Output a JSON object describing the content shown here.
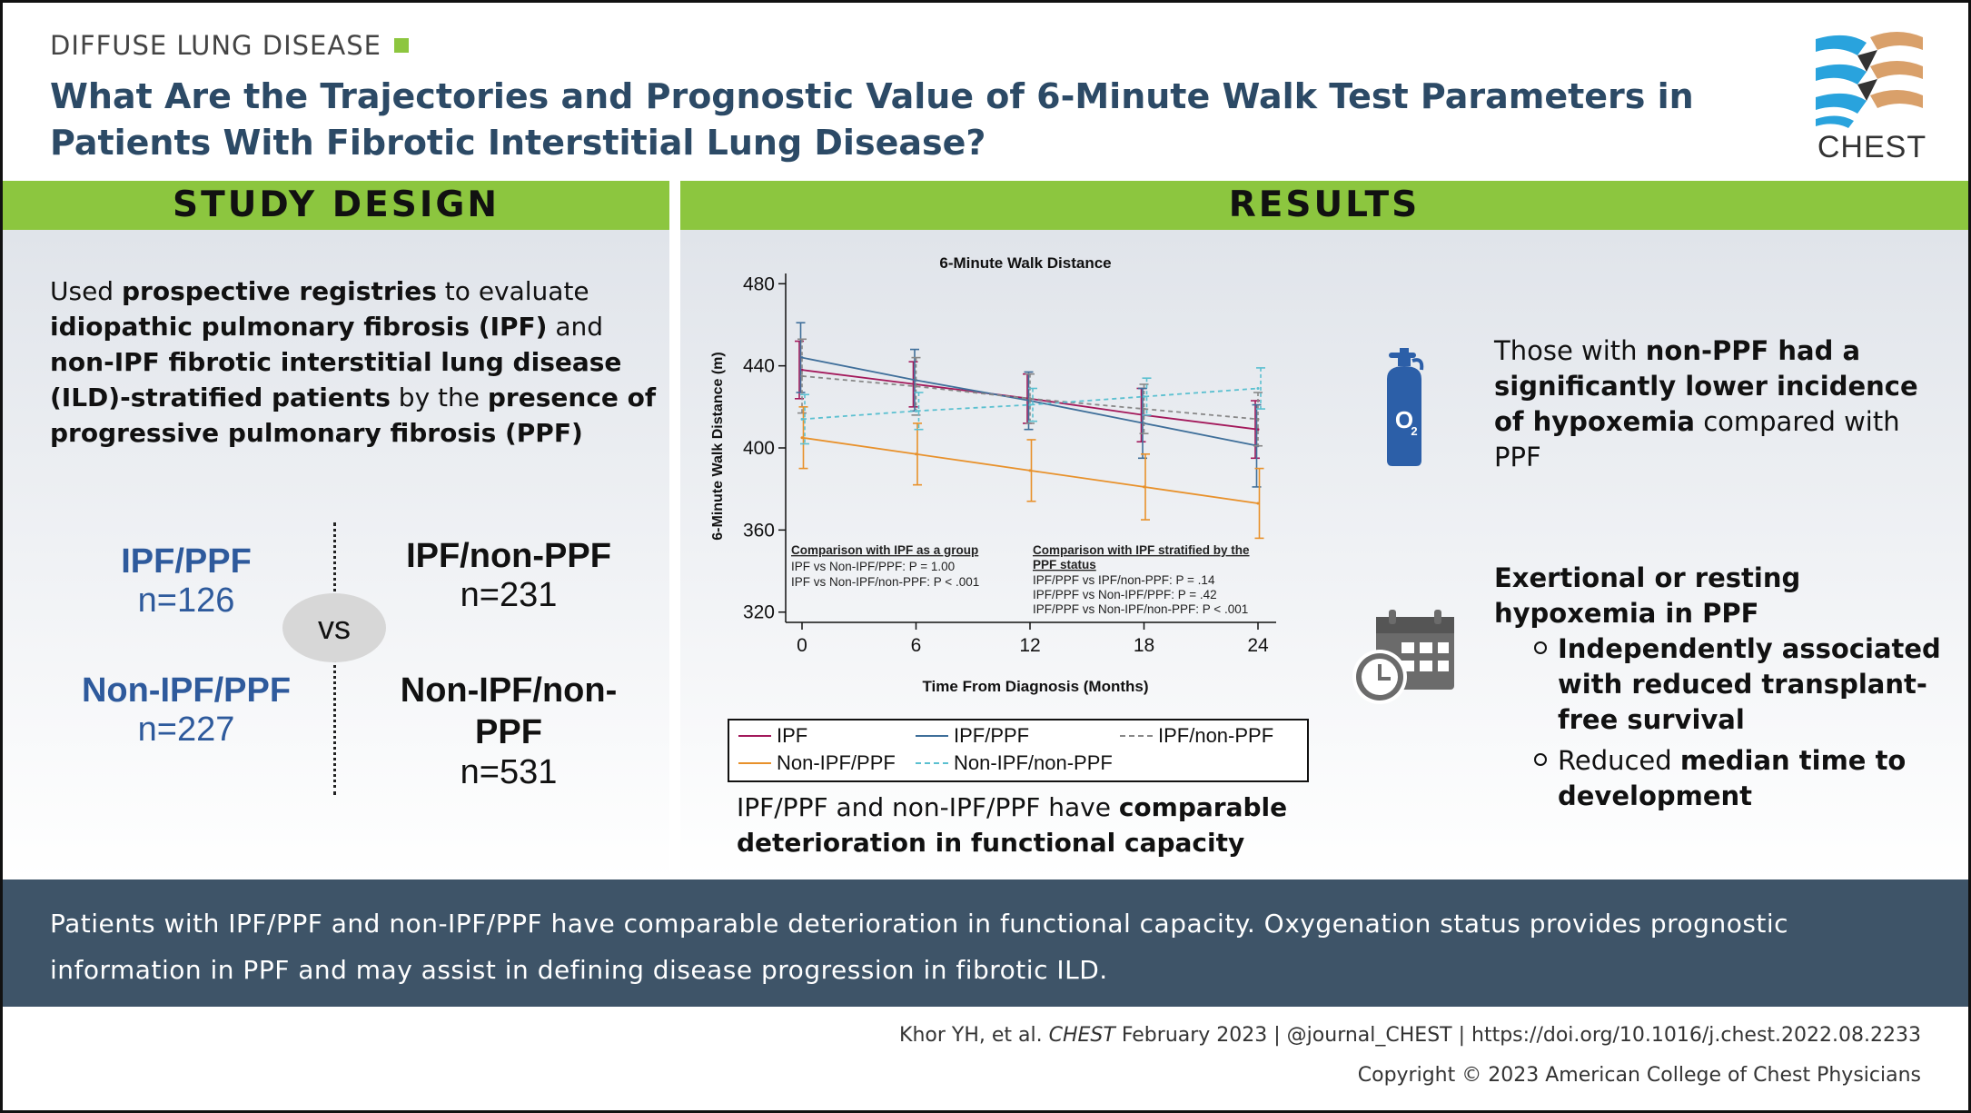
{
  "header": {
    "tag": "DIFFUSE LUNG DISEASE",
    "title_line1": "What Are the Trajectories and Prognostic Value of 6-Minute Walk Test Parameters in",
    "title_line2": "Patients With Fibrotic Interstitial Lung Disease?",
    "logo_text": "CHEST"
  },
  "study_design": {
    "heading": "STUDY DESIGN",
    "text_parts": [
      "Used ",
      "prospective registries",
      " to evaluate ",
      "idiopathic pulmonary fibrosis (IPF)",
      " and ",
      "non-IPF fibrotic interstitial lung disease (ILD)-stratified patients",
      " by the ",
      "presence of progressive pulmonary fibrosis (PPF)"
    ],
    "groups": [
      {
        "name": "IPF/PPF",
        "n": "n=126"
      },
      {
        "name": "Non-IPF/PPF",
        "n": "n=227"
      },
      {
        "name": "IPF/non-PPF",
        "n": "n=231"
      },
      {
        "name": "Non-IPF/non-PPF",
        "n": "n=531"
      }
    ],
    "vs": "vs"
  },
  "results": {
    "heading": "RESULTS",
    "chart_caption_parts": [
      "IPF/PPF and non-IPF/PPF have ",
      "comparable deterioration in functional capacity"
    ],
    "finding1_parts": [
      "Those with ",
      "non-PPF had a significantly lower incidence of hypoxemia",
      " compared with PPF"
    ],
    "finding2_heading": "Exertional or resting hypoxemia in PPF",
    "finding2_bullet1": "Independently associated with reduced transplant-free survival",
    "finding2_bullet2_parts": [
      "Reduced ",
      "median time to development"
    ],
    "icons": [
      "oxygen-tank-icon",
      "calendar-clock-icon"
    ]
  },
  "chart_data": {
    "type": "line",
    "title": "6-Minute Walk Distance",
    "xlabel": "Time From Diagnosis (Months)",
    "ylabel": "6-Minute Walk Distance (m)",
    "x": [
      0,
      6,
      12,
      18,
      24
    ],
    "xticks": [
      "0",
      "6",
      "12",
      "18",
      "24"
    ],
    "yticks": [
      "480",
      "440",
      "400",
      "360",
      "320"
    ],
    "ylim": [
      315,
      485
    ],
    "series": [
      {
        "name": "IPF",
        "color": "#a3195b",
        "dash": false,
        "values": [
          438,
          431,
          424,
          416,
          409
        ],
        "err": [
          14,
          11,
          12,
          13,
          14
        ]
      },
      {
        "name": "IPF/PPF",
        "color": "#3f6f9a",
        "dash": false,
        "values": [
          444,
          433,
          423,
          412,
          401
        ],
        "err": [
          17,
          15,
          14,
          17,
          20
        ]
      },
      {
        "name": "IPF/non-PPF",
        "color": "#888888",
        "dash": true,
        "values": [
          435,
          430,
          424,
          419,
          414
        ],
        "err": [
          18,
          14,
          12,
          12,
          13
        ]
      },
      {
        "name": "Non-IPF/PPF",
        "color": "#e8912b",
        "dash": false,
        "values": [
          405,
          397,
          389,
          381,
          373
        ],
        "err": [
          15,
          15,
          15,
          16,
          17
        ]
      },
      {
        "name": "Non-IPF/non-PPF",
        "color": "#5bc0d0",
        "dash": true,
        "values": [
          414,
          418,
          421,
          425,
          429
        ],
        "err": [
          12,
          9,
          8,
          9,
          10
        ]
      }
    ],
    "annotation_left_title": "Comparison with IPF as a group",
    "annotation_left_lines": [
      "IPF vs Non-IPF/PPF: P = 1.00",
      "IPF vs Non-IPF/non-PPF: P < .001"
    ],
    "annotation_right_title_1": "Comparison with IPF stratified by the",
    "annotation_right_title_2": "PPF status",
    "annotation_right_lines": [
      "IPF/PPF vs IPF/non-PPF: P = .14",
      "IPF/PPF vs Non-IPF/PPF: P = .42",
      "IPF/PPF vs Non-IPF/non-PPF: P < .001"
    ]
  },
  "conclusion": {
    "line1": "Patients with IPF/PPF and non-IPF/PPF have comparable deterioration in functional capacity. Oxygenation status provides prognostic",
    "line2": "information in PPF and may assist in defining disease progression in fibrotic ILD."
  },
  "footer": {
    "cite_prefix": "Khor YH, et al. ",
    "cite_journal": "CHEST",
    "cite_suffix": " February 2023  |  @journal_CHEST  |  https://doi.org/10.1016/j.chest.2022.08.2233",
    "copyright": "Copyright © 2023 American College of Chest Physicians"
  }
}
